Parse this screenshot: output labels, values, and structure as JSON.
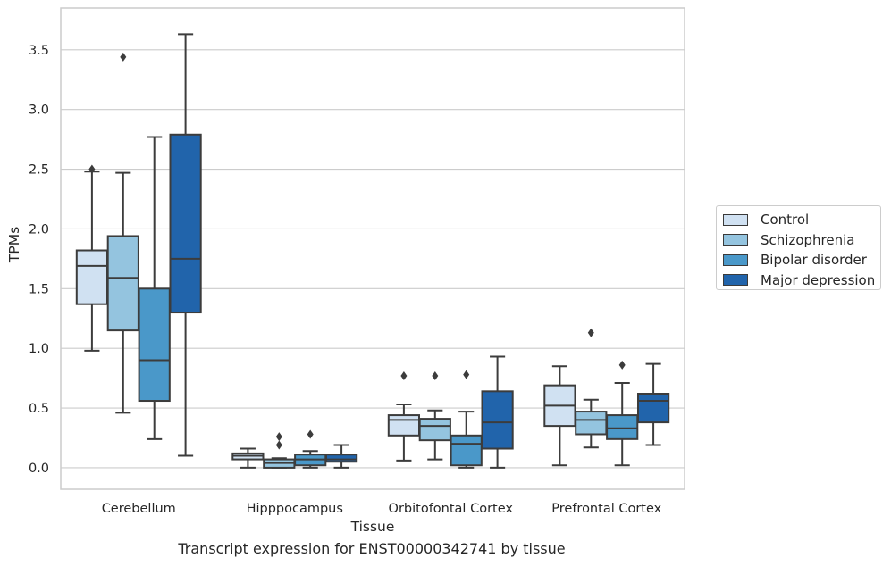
{
  "chart_data": {
    "type": "box",
    "xlabel": "Tissue",
    "ylabel": "TPMs",
    "ylim": [
      -0.18,
      3.85
    ],
    "yticks": [
      0.0,
      0.5,
      1.0,
      1.5,
      2.0,
      2.5,
      3.0,
      3.5
    ],
    "ytick_labels": [
      "0.0",
      "0.5",
      "1.0",
      "1.5",
      "2.0",
      "2.5",
      "3.0",
      "3.5"
    ],
    "grid": "horizontal",
    "legend_position": "right",
    "categories": [
      "Cerebellum",
      "Hipppocampus",
      "Orbitofontal Cortex",
      "Prefrontal Cortex"
    ],
    "series": [
      {
        "name": "Control",
        "color": "#d0e1f2",
        "boxes": [
          {
            "whislo": 0.98,
            "q1": 1.37,
            "med": 1.69,
            "q3": 1.82,
            "whishi": 2.48,
            "fliers": [
              2.5
            ]
          },
          {
            "whislo": 0.0,
            "q1": 0.07,
            "med": 0.1,
            "q3": 0.12,
            "whishi": 0.16,
            "fliers": []
          },
          {
            "whislo": 0.06,
            "q1": 0.27,
            "med": 0.4,
            "q3": 0.44,
            "whishi": 0.53,
            "fliers": [
              0.77
            ]
          },
          {
            "whislo": 0.02,
            "q1": 0.35,
            "med": 0.52,
            "q3": 0.69,
            "whishi": 0.85,
            "fliers": []
          }
        ]
      },
      {
        "name": "Schizophrenia",
        "color": "#94c4df",
        "boxes": [
          {
            "whislo": 0.46,
            "q1": 1.15,
            "med": 1.59,
            "q3": 1.94,
            "whishi": 2.47,
            "fliers": [
              3.44
            ]
          },
          {
            "whislo": 0.0,
            "q1": 0.0,
            "med": 0.04,
            "q3": 0.07,
            "whishi": 0.08,
            "fliers": [
              0.19,
              0.26
            ]
          },
          {
            "whislo": 0.07,
            "q1": 0.23,
            "med": 0.35,
            "q3": 0.41,
            "whishi": 0.48,
            "fliers": [
              0.77
            ]
          },
          {
            "whislo": 0.17,
            "q1": 0.28,
            "med": 0.4,
            "q3": 0.47,
            "whishi": 0.57,
            "fliers": [
              1.13
            ]
          }
        ]
      },
      {
        "name": "Bipolar disorder",
        "color": "#4a98c9",
        "boxes": [
          {
            "whislo": 0.24,
            "q1": 0.56,
            "med": 0.9,
            "q3": 1.5,
            "whishi": 2.77,
            "fliers": []
          },
          {
            "whislo": 0.0,
            "q1": 0.02,
            "med": 0.07,
            "q3": 0.11,
            "whishi": 0.14,
            "fliers": [
              0.28
            ]
          },
          {
            "whislo": 0.0,
            "q1": 0.02,
            "med": 0.2,
            "q3": 0.27,
            "whishi": 0.47,
            "fliers": [
              0.78
            ]
          },
          {
            "whislo": 0.02,
            "q1": 0.24,
            "med": 0.33,
            "q3": 0.44,
            "whishi": 0.71,
            "fliers": [
              0.86
            ]
          }
        ]
      },
      {
        "name": "Major depression",
        "color": "#2164ab",
        "boxes": [
          {
            "whislo": 0.1,
            "q1": 1.3,
            "med": 1.75,
            "q3": 2.79,
            "whishi": 3.63,
            "fliers": []
          },
          {
            "whislo": 0.0,
            "q1": 0.05,
            "med": 0.07,
            "q3": 0.11,
            "whishi": 0.19,
            "fliers": []
          },
          {
            "whislo": 0.0,
            "q1": 0.16,
            "med": 0.38,
            "q3": 0.64,
            "whishi": 0.93,
            "fliers": []
          },
          {
            "whislo": 0.19,
            "q1": 0.38,
            "med": 0.56,
            "q3": 0.62,
            "whishi": 0.87,
            "fliers": []
          }
        ]
      }
    ]
  },
  "caption": "Transcript expression for ENST00000342741 by tissue"
}
